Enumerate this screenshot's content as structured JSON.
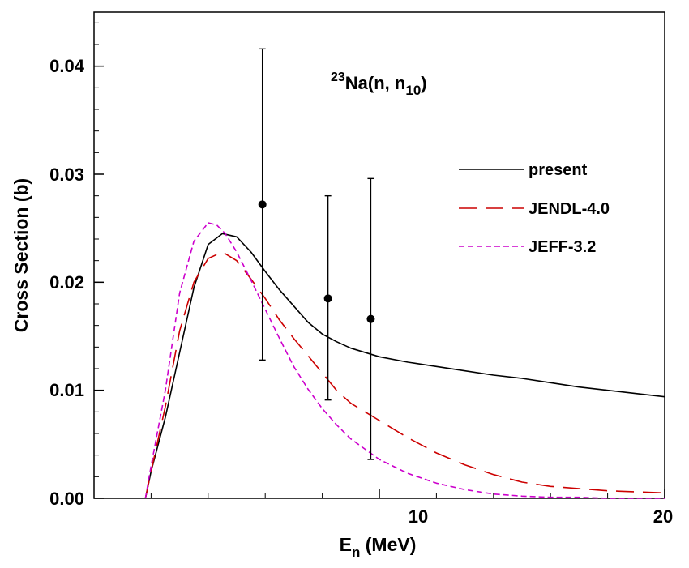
{
  "chart_data": {
    "type": "line",
    "title": "",
    "annotation": {
      "sup": "23",
      "main": "Na(n, n",
      "sub": "10",
      "close": ")"
    },
    "xlabel": {
      "main": "E",
      "sub": "n",
      "rest": " (MeV)"
    },
    "ylabel": "Cross Section (b)",
    "xlim": [
      0,
      20
    ],
    "ylim": [
      0,
      0.045
    ],
    "x_ticks": [
      {
        "value": 10,
        "label": "10"
      },
      {
        "value": 20,
        "label": "20"
      }
    ],
    "y_ticks": [
      {
        "value": 0.0,
        "label": "0.00"
      },
      {
        "value": 0.01,
        "label": "0.01"
      },
      {
        "value": 0.02,
        "label": "0.02"
      },
      {
        "value": 0.03,
        "label": "0.03"
      },
      {
        "value": 0.04,
        "label": "0.04"
      }
    ],
    "legend_position": "top-right",
    "series": [
      {
        "name": "present",
        "color": "#000000",
        "dash": "solid",
        "x": [
          1.8,
          2.0,
          2.5,
          3.0,
          3.5,
          4.0,
          4.5,
          5.0,
          5.5,
          6.0,
          6.5,
          7.0,
          7.5,
          8.0,
          8.5,
          9.0,
          10.0,
          11.0,
          12.0,
          13.0,
          14.0,
          15.0,
          16.0,
          17.0,
          18.0,
          19.0,
          20.0
        ],
        "y": [
          0.0,
          0.0025,
          0.0075,
          0.0135,
          0.0195,
          0.0235,
          0.0245,
          0.0242,
          0.0228,
          0.021,
          0.0193,
          0.0178,
          0.0163,
          0.0152,
          0.0145,
          0.0139,
          0.0131,
          0.0126,
          0.0122,
          0.0118,
          0.0114,
          0.0111,
          0.0107,
          0.0103,
          0.01,
          0.0097,
          0.0094
        ]
      },
      {
        "name": "JENDL-4.0",
        "color": "#cc0000",
        "dash": "long-dash",
        "x": [
          1.8,
          2.0,
          2.5,
          3.0,
          3.5,
          4.0,
          4.5,
          5.0,
          5.5,
          6.0,
          6.5,
          7.0,
          7.5,
          8.0,
          8.5,
          9.0,
          10.0,
          11.0,
          12.0,
          13.0,
          14.0,
          15.0,
          16.0,
          17.0,
          18.0,
          19.0,
          20.0
        ],
        "y": [
          0.0,
          0.0025,
          0.0085,
          0.0155,
          0.02,
          0.0222,
          0.0228,
          0.022,
          0.0203,
          0.0185,
          0.0165,
          0.0148,
          0.0132,
          0.0116,
          0.01,
          0.0088,
          0.0072,
          0.0056,
          0.0042,
          0.0031,
          0.0022,
          0.0015,
          0.0011,
          0.0009,
          0.0007,
          0.0006,
          0.0005
        ]
      },
      {
        "name": "JEFF-3.2",
        "color": "#cc00cc",
        "dash": "short-dash",
        "x": [
          1.8,
          2.0,
          2.5,
          3.0,
          3.5,
          4.0,
          4.3,
          4.6,
          5.0,
          5.5,
          6.0,
          6.5,
          7.0,
          7.5,
          8.0,
          8.5,
          9.0,
          10.0,
          11.0,
          12.0,
          13.0,
          14.0,
          15.0,
          16.0,
          17.0,
          18.0,
          19.0,
          20.0
        ],
        "y": [
          0.0,
          0.003,
          0.01,
          0.019,
          0.0238,
          0.0255,
          0.0253,
          0.0245,
          0.0228,
          0.0202,
          0.0175,
          0.0148,
          0.0122,
          0.0101,
          0.0083,
          0.0068,
          0.0055,
          0.0036,
          0.0023,
          0.0014,
          0.0008,
          0.0004,
          0.0002,
          0.0001,
          0.0001,
          0.0,
          0.0,
          0.0
        ]
      }
    ],
    "experimental": {
      "name": "",
      "points": [
        {
          "x": 5.9,
          "y": 0.0272,
          "ylow": 0.0128,
          "yhigh": 0.0416
        },
        {
          "x": 8.2,
          "y": 0.0185,
          "ylow": 0.0091,
          "yhigh": 0.028
        },
        {
          "x": 9.7,
          "y": 0.0166,
          "ylow": 0.0036,
          "yhigh": 0.0296
        }
      ]
    }
  }
}
